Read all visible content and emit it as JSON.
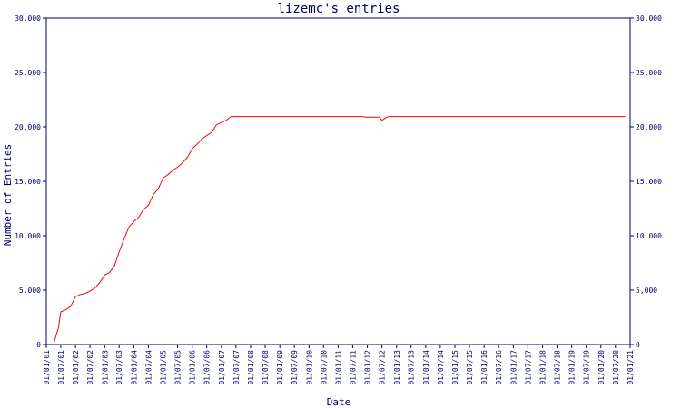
{
  "chart_data": {
    "type": "line",
    "title": "lizemc's entries",
    "xlabel": "Date",
    "ylabel": "Number of Entries",
    "x_ticks": [
      "01/01/01",
      "01/07/01",
      "01/01/02",
      "01/07/02",
      "01/01/03",
      "01/07/03",
      "01/01/04",
      "01/07/04",
      "01/01/05",
      "01/07/05",
      "01/01/06",
      "01/07/06",
      "01/01/07",
      "01/07/07",
      "01/01/08",
      "01/07/08",
      "01/01/09",
      "01/07/09",
      "01/01/10",
      "01/07/10",
      "01/01/11",
      "01/07/11",
      "01/01/12",
      "01/07/12",
      "01/01/13",
      "01/07/13",
      "01/01/14",
      "01/07/14",
      "01/01/15",
      "01/07/15",
      "01/01/16",
      "01/07/16",
      "01/01/17",
      "01/07/17",
      "01/01/18",
      "01/07/18",
      "01/01/19",
      "01/07/19",
      "01/01/20",
      "01/07/20",
      "01/01/21"
    ],
    "y_ticks": [
      "0",
      "5,000",
      "10,000",
      "15,000",
      "20,000",
      "25,000",
      "30,000"
    ],
    "ylim": [
      0,
      30000
    ],
    "xlim": [
      "2001-01-01",
      "2021-01-01"
    ],
    "grid": false,
    "colors": {
      "line": "#ff0000",
      "axes": "#000066",
      "text": "#000066"
    },
    "series": [
      {
        "points": [
          [
            "2001-04-01",
            0
          ],
          [
            "2001-05-01",
            800
          ],
          [
            "2001-06-01",
            1500
          ],
          [
            "2001-07-01",
            3000
          ],
          [
            "2001-09-01",
            3200
          ],
          [
            "2001-11-01",
            3500
          ],
          [
            "2002-01-01",
            4400
          ],
          [
            "2002-03-01",
            4600
          ],
          [
            "2002-05-01",
            4700
          ],
          [
            "2002-07-01",
            4900
          ],
          [
            "2002-09-01",
            5200
          ],
          [
            "2002-11-01",
            5700
          ],
          [
            "2003-01-01",
            6400
          ],
          [
            "2003-03-01",
            6600
          ],
          [
            "2003-05-01",
            7200
          ],
          [
            "2003-07-01",
            8500
          ],
          [
            "2003-09-01",
            9700
          ],
          [
            "2003-11-01",
            10800
          ],
          [
            "2004-01-01",
            11300
          ],
          [
            "2004-03-01",
            11700
          ],
          [
            "2004-05-01",
            12400
          ],
          [
            "2004-07-01",
            12800
          ],
          [
            "2004-09-01",
            13800
          ],
          [
            "2004-11-01",
            14300
          ],
          [
            "2005-01-01",
            15300
          ],
          [
            "2005-03-01",
            15600
          ],
          [
            "2005-05-01",
            16000
          ],
          [
            "2005-07-01",
            16300
          ],
          [
            "2005-09-01",
            16700
          ],
          [
            "2005-11-01",
            17200
          ],
          [
            "2006-01-01",
            18000
          ],
          [
            "2006-03-01",
            18400
          ],
          [
            "2006-05-01",
            18900
          ],
          [
            "2006-07-01",
            19200
          ],
          [
            "2006-09-01",
            19500
          ],
          [
            "2006-11-01",
            20200
          ],
          [
            "2007-01-01",
            20400
          ],
          [
            "2007-03-01",
            20600
          ],
          [
            "2007-05-01",
            20950
          ],
          [
            "2008-01-01",
            20950
          ],
          [
            "2009-01-01",
            20950
          ],
          [
            "2010-01-01",
            20950
          ],
          [
            "2011-01-01",
            20950
          ],
          [
            "2011-11-01",
            20950
          ],
          [
            "2011-12-01",
            20900
          ],
          [
            "2012-06-01",
            20900
          ],
          [
            "2012-07-01",
            20600
          ],
          [
            "2012-09-01",
            20900
          ],
          [
            "2012-10-01",
            20950
          ],
          [
            "2014-01-01",
            20950
          ],
          [
            "2016-01-01",
            20950
          ],
          [
            "2018-01-01",
            20950
          ],
          [
            "2020-01-01",
            20950
          ],
          [
            "2020-11-01",
            20950
          ]
        ]
      }
    ]
  }
}
